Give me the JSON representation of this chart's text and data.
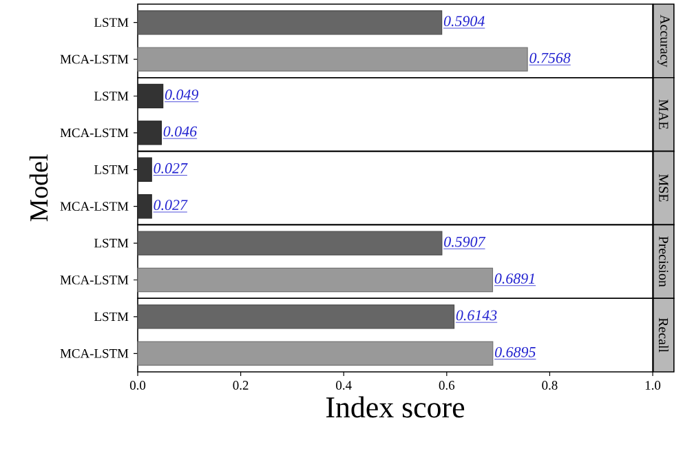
{
  "chart_data": [
    {
      "type": "bar",
      "orientation": "horizontal",
      "title": "Accuracy",
      "categories": [
        "LSTM",
        "MCA-LSTM"
      ],
      "values": [
        0.5904,
        0.7568
      ],
      "colors": [
        "#666666",
        "#999999"
      ],
      "xlim": [
        0,
        1
      ],
      "data_labels": true,
      "tick_labels": "y"
    },
    {
      "type": "bar",
      "orientation": "horizontal",
      "title": "MAE",
      "categories": [
        "LSTM",
        "MCA-LSTM"
      ],
      "values": [
        0.049,
        0.046
      ],
      "colors": [
        "#333333",
        "#333333"
      ],
      "xlim": [
        0,
        1
      ],
      "data_labels": true,
      "tick_labels": "y"
    },
    {
      "type": "bar",
      "orientation": "horizontal",
      "title": "MSE",
      "ylabel": "Model",
      "categories": [
        "LSTM",
        "MCA-LSTM"
      ],
      "values": [
        0.027,
        0.027
      ],
      "colors": [
        "#333333",
        "#333333"
      ],
      "xlim": [
        0,
        1
      ],
      "data_labels": true,
      "tick_labels": "y"
    },
    {
      "type": "bar",
      "orientation": "horizontal",
      "title": "Precision",
      "categories": [
        "LSTM",
        "MCA-LSTM"
      ],
      "values": [
        0.5907,
        0.6891
      ],
      "colors": [
        "#666666",
        "#999999"
      ],
      "xlim": [
        0,
        1
      ],
      "data_labels": true,
      "tick_labels": "y"
    },
    {
      "type": "bar",
      "orientation": "horizontal",
      "title": "Recall",
      "xlabel": "Index score",
      "categories": [
        "LSTM",
        "MCA-LSTM"
      ],
      "values": [
        0.6143,
        0.6895
      ],
      "colors": [
        "#666666",
        "#999999"
      ],
      "xlim": [
        0,
        1
      ],
      "xticks": [
        {
          "value": 0.0,
          "label": "0.0"
        },
        {
          "value": 0.2,
          "label": "0.2"
        },
        {
          "value": 0.4,
          "label": "0.4"
        },
        {
          "value": 0.6,
          "label": "0.6"
        },
        {
          "value": 0.8,
          "label": "0.8"
        },
        {
          "value": 1.0,
          "label": "1.0"
        }
      ],
      "data_labels": true
    }
  ]
}
